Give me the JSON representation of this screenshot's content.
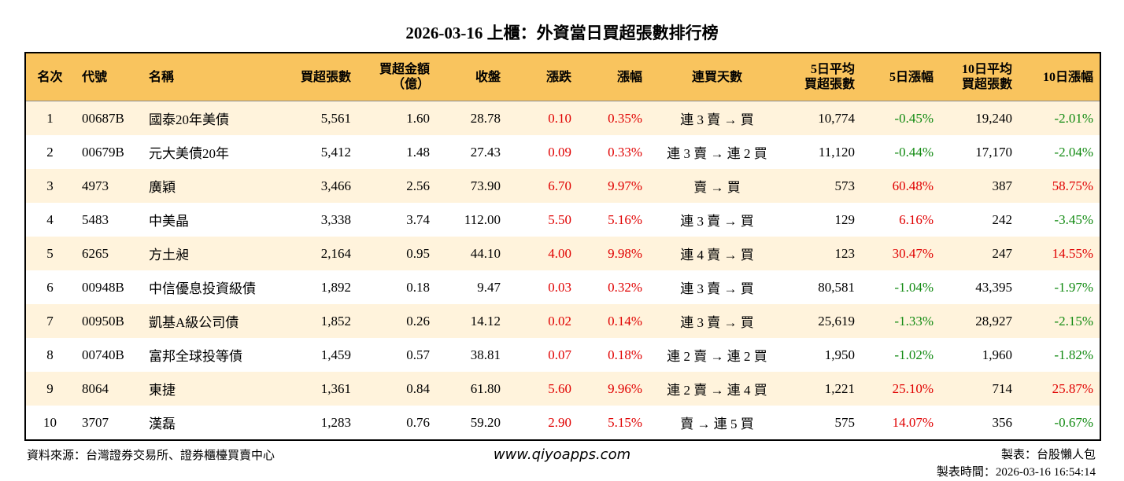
{
  "title": "2026-03-16 上櫃：外資當日買超張數排行榜",
  "table": {
    "header": [
      "名次",
      "代號",
      "名稱",
      "買超張數",
      "買超金額\n（億）",
      "收盤",
      "漲跌",
      "漲幅",
      "連買天數",
      "5日平均\n買超張數",
      "5日漲幅",
      "10日平均\n買超張數",
      "10日漲幅"
    ],
    "rows": [
      [
        "1",
        "00687B",
        "國泰20年美債",
        "5,561",
        "1.60",
        "28.78",
        "0.10",
        "0.35%",
        "連 3 賣 → 買",
        "10,774",
        "-0.45%",
        "19,240",
        "-2.01%"
      ],
      [
        "2",
        "00679B",
        "元大美債20年",
        "5,412",
        "1.48",
        "27.43",
        "0.09",
        "0.33%",
        "連 3 賣 → 連 2 買",
        "11,120",
        "-0.44%",
        "17,170",
        "-2.04%"
      ],
      [
        "3",
        "4973",
        "廣穎",
        "3,466",
        "2.56",
        "73.90",
        "6.70",
        "9.97%",
        "賣 → 買",
        "573",
        "60.48%",
        "387",
        "58.75%"
      ],
      [
        "4",
        "5483",
        "中美晶",
        "3,338",
        "3.74",
        "112.00",
        "5.50",
        "5.16%",
        "連 3 賣 → 買",
        "129",
        "6.16%",
        "242",
        "-3.45%"
      ],
      [
        "5",
        "6265",
        "方土昶",
        "2,164",
        "0.95",
        "44.10",
        "4.00",
        "9.98%",
        "連 4 賣 → 買",
        "123",
        "30.47%",
        "247",
        "14.55%"
      ],
      [
        "6",
        "00948B",
        "中信優息投資級債",
        "1,892",
        "0.18",
        "9.47",
        "0.03",
        "0.32%",
        "連 3 賣 → 買",
        "80,581",
        "-1.04%",
        "43,395",
        "-1.97%"
      ],
      [
        "7",
        "00950B",
        "凱基A級公司債",
        "1,852",
        "0.26",
        "14.12",
        "0.02",
        "0.14%",
        "連 3 賣 → 買",
        "25,619",
        "-1.33%",
        "28,927",
        "-2.15%"
      ],
      [
        "8",
        "00740B",
        "富邦全球投等債",
        "1,459",
        "0.57",
        "38.81",
        "0.07",
        "0.18%",
        "連 2 賣 → 連 2 買",
        "1,950",
        "-1.02%",
        "1,960",
        "-1.82%"
      ],
      [
        "9",
        "8064",
        "東捷",
        "1,361",
        "0.84",
        "61.80",
        "5.60",
        "9.96%",
        "連 2 賣 → 連 4 買",
        "1,221",
        "25.10%",
        "714",
        "25.87%"
      ],
      [
        "10",
        "3707",
        "漢磊",
        "1,283",
        "0.76",
        "59.20",
        "2.90",
        "5.15%",
        "賣 → 連 5 買",
        "575",
        "14.07%",
        "356",
        "-0.67%"
      ]
    ]
  },
  "footer": {
    "source": "資料來源：台灣證券交易所、證券櫃檯買賣中心",
    "website": "www.qiyoapps.com",
    "maker": "製表：台股懶人包",
    "time": "製表時間：2026-03-16 16:54:14"
  }
}
